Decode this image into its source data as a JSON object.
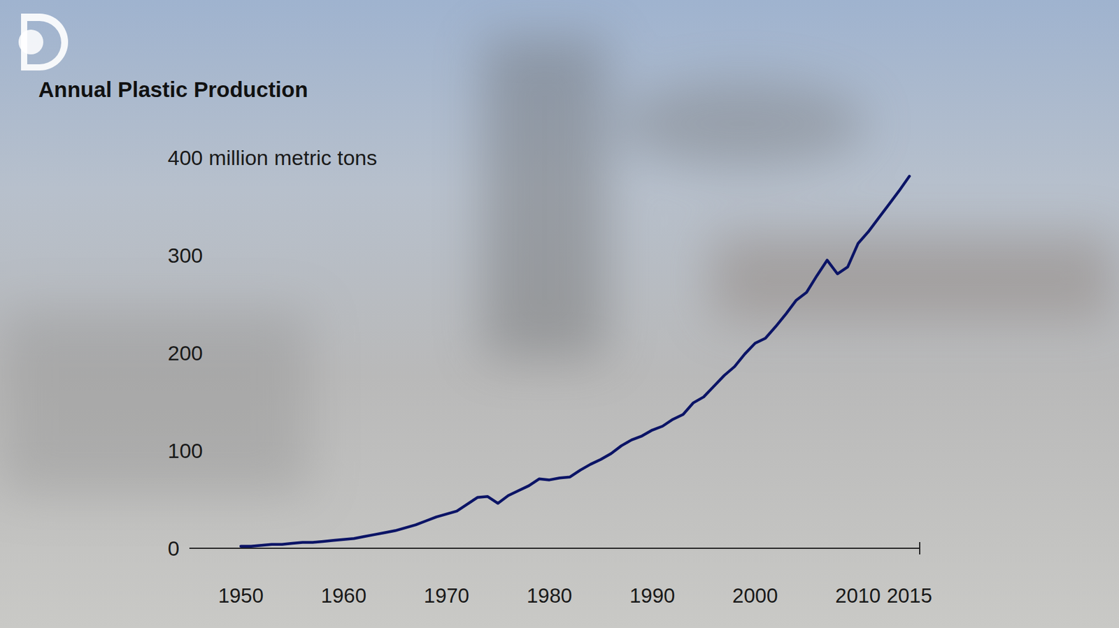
{
  "chart_data": {
    "type": "line",
    "title": "Annual Plastic Production",
    "color": "#0b1466",
    "x": [
      1950,
      1951,
      1952,
      1953,
      1954,
      1955,
      1956,
      1957,
      1958,
      1959,
      1960,
      1961,
      1962,
      1963,
      1964,
      1965,
      1966,
      1967,
      1968,
      1969,
      1970,
      1971,
      1972,
      1973,
      1974,
      1975,
      1976,
      1977,
      1978,
      1979,
      1980,
      1981,
      1982,
      1983,
      1984,
      1985,
      1986,
      1987,
      1988,
      1989,
      1990,
      1991,
      1992,
      1993,
      1994,
      1995,
      1996,
      1997,
      1998,
      1999,
      2000,
      2001,
      2002,
      2003,
      2004,
      2005,
      2006,
      2007,
      2008,
      2009,
      2010,
      2011,
      2012,
      2013,
      2014,
      2015
    ],
    "values": [
      2,
      2,
      3,
      4,
      4,
      5,
      6,
      6,
      7,
      8,
      9,
      10,
      12,
      14,
      16,
      18,
      21,
      24,
      28,
      32,
      35,
      38,
      45,
      52,
      53,
      46,
      54,
      59,
      64,
      71,
      70,
      72,
      73,
      80,
      86,
      91,
      97,
      105,
      111,
      115,
      121,
      125,
      132,
      137,
      149,
      155,
      166,
      177,
      186,
      199,
      210,
      215,
      227,
      240,
      254,
      262,
      279,
      295,
      281,
      288,
      312,
      324,
      338,
      352,
      366,
      381
    ],
    "xlim": [
      1945,
      2016
    ],
    "xticks": [
      1950,
      1960,
      1970,
      1980,
      1990,
      2000,
      2010,
      2015
    ],
    "ylim": [
      0,
      400
    ],
    "yticks": [
      0,
      100,
      200,
      300,
      {
        "value": 400,
        "label": "400 million metric tons"
      }
    ],
    "grid": false
  }
}
